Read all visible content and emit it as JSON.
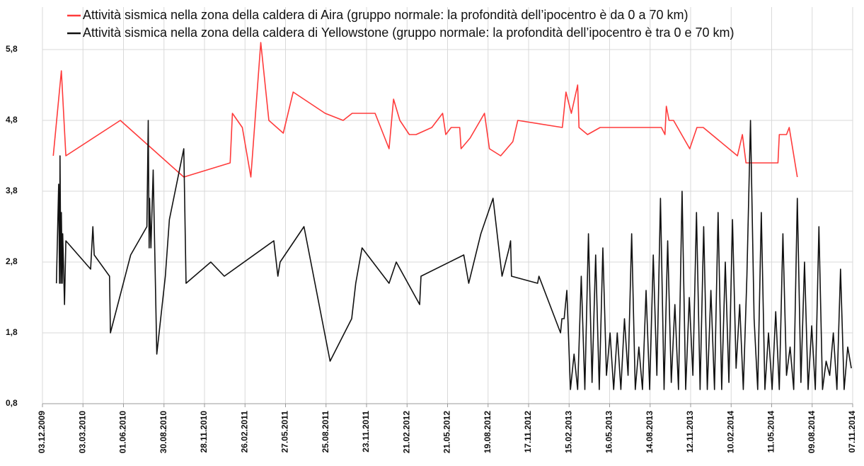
{
  "chart_data": {
    "type": "line",
    "legend": "top",
    "grid": true,
    "xlim": [
      "2009-12-03",
      "2014-11-07"
    ],
    "xticks": [
      {
        "value": "2009-12-03",
        "label": "03.12.2009"
      },
      {
        "value": "2010-03-03",
        "label": "03.03.2010"
      },
      {
        "value": "2010-06-01",
        "label": "01.06.2010"
      },
      {
        "value": "2010-08-30",
        "label": "30.08.2010"
      },
      {
        "value": "2010-11-28",
        "label": "28.11.2010"
      },
      {
        "value": "2011-02-26",
        "label": "26.02.2011"
      },
      {
        "value": "2011-05-27",
        "label": "27.05.2011"
      },
      {
        "value": "2011-08-25",
        "label": "25.08.2011"
      },
      {
        "value": "2011-11-23",
        "label": "23.11.2011"
      },
      {
        "value": "2012-02-21",
        "label": "21.02.2012"
      },
      {
        "value": "2012-05-21",
        "label": "21.05.2012"
      },
      {
        "value": "2012-08-19",
        "label": "19.08.2012"
      },
      {
        "value": "2012-11-17",
        "label": "17.11.2012"
      },
      {
        "value": "2013-02-15",
        "label": "15.02.2013"
      },
      {
        "value": "2013-05-16",
        "label": "16.05.2013"
      },
      {
        "value": "2013-08-14",
        "label": "14.08.2013"
      },
      {
        "value": "2013-11-12",
        "label": "12.11.2013"
      },
      {
        "value": "2014-02-10",
        "label": "10.02.2014"
      },
      {
        "value": "2014-05-11",
        "label": "11.05.2014"
      },
      {
        "value": "2014-08-09",
        "label": "09.08.2014"
      },
      {
        "value": "2014-11-07",
        "label": "07.11.2014"
      }
    ],
    "ylim": [
      0.8,
      6.4
    ],
    "yticks": [
      {
        "value": 0.8,
        "label": "0,8"
      },
      {
        "value": 1.8,
        "label": "1,8"
      },
      {
        "value": 2.8,
        "label": "2,8"
      },
      {
        "value": 3.8,
        "label": "3,8"
      },
      {
        "value": 4.8,
        "label": "4,8"
      },
      {
        "value": 5.8,
        "label": "5,8"
      }
    ],
    "series": [
      {
        "name": "Attività sismica nella zona della caldera di Aira (gruppo normale: la profondità dell’ipocentro è da 0 a 70 km)",
        "color": "#ff3b3b",
        "x": [
          "2009-12-27",
          "2010-01-14",
          "2010-01-24",
          "2010-05-25",
          "2010-10-13",
          "2011-01-24",
          "2011-01-29",
          "2011-02-20",
          "2011-03-11",
          "2011-04-02",
          "2011-04-20",
          "2011-05-22",
          "2011-06-13",
          "2011-08-23",
          "2011-10-02",
          "2011-10-22",
          "2011-12-12",
          "2012-01-12",
          "2012-01-22",
          "2012-02-05",
          "2012-02-26",
          "2012-03-12",
          "2012-04-16",
          "2012-05-10",
          "2012-05-17",
          "2012-05-29",
          "2012-06-17",
          "2012-06-20",
          "2012-07-10",
          "2012-08-11",
          "2012-08-22",
          "2012-09-16",
          "2012-10-13",
          "2012-10-24",
          "2013-01-31",
          "2013-02-08",
          "2013-02-20",
          "2013-03-06",
          "2013-03-09",
          "2013-03-28",
          "2013-04-25",
          "2013-09-08",
          "2013-09-16",
          "2013-09-19",
          "2013-09-25",
          "2013-10-05",
          "2013-11-10",
          "2013-11-26",
          "2013-12-10",
          "2014-02-24",
          "2014-03-07",
          "2014-03-15",
          "2014-05-25",
          "2014-05-28",
          "2014-06-13",
          "2014-06-19",
          "2014-07-07"
        ],
        "values": [
          4.3,
          5.5,
          4.3,
          4.8,
          4.0,
          4.2,
          4.9,
          4.7,
          4.0,
          5.9,
          4.8,
          4.62,
          5.2,
          4.9,
          4.8,
          4.9,
          4.9,
          4.4,
          5.1,
          4.8,
          4.6,
          4.6,
          4.7,
          4.9,
          4.6,
          4.7,
          4.7,
          4.4,
          4.55,
          4.9,
          4.4,
          4.3,
          4.5,
          4.8,
          4.7,
          5.2,
          4.9,
          5.3,
          4.7,
          4.6,
          4.7,
          4.7,
          4.6,
          5.0,
          4.8,
          4.8,
          4.4,
          4.7,
          4.7,
          4.3,
          4.6,
          4.2,
          4.2,
          4.6,
          4.6,
          4.7,
          4.0
        ]
      },
      {
        "name": "Attività sismica nella zona della caldera di Yellowstone (gruppo normale: la profondità dell’ipocentro è tra 0 e 70 km)",
        "color": "#111111",
        "x": [
          "2010-01-03",
          "2010-01-08",
          "2010-01-10",
          "2010-01-11",
          "2010-01-13",
          "2010-01-14",
          "2010-01-16",
          "2010-01-17",
          "2010-01-21",
          "2010-01-24",
          "2010-03-20",
          "2010-03-25",
          "2010-03-28",
          "2010-05-01",
          "2010-05-03",
          "2010-06-17",
          "2010-07-23",
          "2010-07-26",
          "2010-07-28",
          "2010-07-29",
          "2010-08-01",
          "2010-08-06",
          "2010-08-14",
          "2010-09-02",
          "2010-09-11",
          "2010-10-13",
          "2010-10-18",
          "2010-12-12",
          "2011-01-11",
          "2011-05-01",
          "2011-05-10",
          "2011-05-15",
          "2011-07-07",
          "2011-09-03",
          "2011-10-21",
          "2011-10-30",
          "2011-11-13",
          "2012-01-12",
          "2012-01-28",
          "2012-03-20",
          "2012-03-23",
          "2012-06-26",
          "2012-07-07",
          "2012-08-03",
          "2012-08-30",
          "2012-09-19",
          "2012-10-05",
          "2012-10-08",
          "2012-10-10",
          "2012-12-07",
          "2012-12-10",
          "2013-01-27",
          "2013-01-30",
          "2013-02-04",
          "2013-02-10",
          "2013-02-18",
          "2013-02-26",
          "2013-03-06",
          "2013-03-14",
          "2013-03-22",
          "2013-03-30",
          "2013-04-07",
          "2013-04-15",
          "2013-04-23",
          "2013-05-01",
          "2013-05-09",
          "2013-05-17",
          "2013-05-25",
          "2013-06-02",
          "2013-06-10",
          "2013-06-18",
          "2013-06-26",
          "2013-07-04",
          "2013-07-12",
          "2013-07-20",
          "2013-07-28",
          "2013-08-05",
          "2013-08-13",
          "2013-08-21",
          "2013-08-29",
          "2013-09-06",
          "2013-09-14",
          "2013-09-22",
          "2013-09-30",
          "2013-10-08",
          "2013-10-16",
          "2013-10-24",
          "2013-11-01",
          "2013-11-09",
          "2013-11-17",
          "2013-11-25",
          "2013-12-03",
          "2013-12-11",
          "2013-12-19",
          "2013-12-27",
          "2014-01-04",
          "2014-01-12",
          "2014-01-20",
          "2014-01-28",
          "2014-02-05",
          "2014-02-13",
          "2014-02-21",
          "2014-03-01",
          "2014-03-09",
          "2014-03-17",
          "2014-03-25",
          "2014-04-02",
          "2014-04-10",
          "2014-04-18",
          "2014-04-26",
          "2014-05-04",
          "2014-05-12",
          "2014-05-20",
          "2014-05-28",
          "2014-06-05",
          "2014-06-13",
          "2014-06-21",
          "2014-06-29",
          "2014-07-07",
          "2014-07-15",
          "2014-07-23",
          "2014-07-31",
          "2014-08-08",
          "2014-08-16",
          "2014-08-24",
          "2014-09-01",
          "2014-09-09",
          "2014-09-17",
          "2014-09-25",
          "2014-10-03",
          "2014-10-11",
          "2014-10-19",
          "2014-10-27",
          "2014-11-04"
        ],
        "values": [
          2.5,
          3.9,
          2.5,
          4.3,
          2.5,
          3.5,
          2.5,
          3.2,
          2.2,
          3.1,
          2.7,
          3.3,
          2.9,
          2.6,
          1.8,
          2.9,
          3.3,
          4.8,
          3.0,
          3.7,
          3.0,
          4.1,
          1.5,
          2.6,
          3.4,
          4.4,
          2.5,
          2.8,
          2.6,
          3.1,
          2.6,
          2.8,
          3.3,
          1.4,
          2.0,
          2.5,
          3.0,
          2.5,
          2.8,
          2.2,
          2.6,
          2.9,
          2.5,
          3.2,
          3.7,
          2.6,
          3.0,
          3.1,
          2.6,
          2.5,
          2.6,
          1.8,
          2.0,
          2.0,
          2.4,
          1.0,
          1.5,
          1.0,
          2.6,
          1.0,
          3.2,
          1.1,
          2.9,
          1.0,
          3.0,
          1.2,
          1.8,
          1.0,
          1.8,
          1.0,
          2.0,
          1.2,
          3.2,
          1.0,
          1.6,
          1.0,
          2.4,
          1.0,
          2.9,
          1.2,
          3.7,
          1.0,
          3.1,
          1.1,
          2.2,
          1.0,
          3.8,
          1.0,
          2.3,
          1.2,
          3.5,
          1.0,
          3.3,
          1.0,
          2.4,
          1.0,
          3.5,
          1.0,
          2.8,
          1.1,
          3.4,
          1.3,
          2.2,
          1.0,
          2.6,
          4.8,
          2.0,
          1.0,
          3.5,
          1.0,
          1.8,
          1.0,
          2.1,
          1.0,
          3.2,
          1.2,
          1.6,
          1.0,
          3.7,
          1.1,
          2.8,
          1.0,
          1.9,
          1.0,
          3.3,
          1.0,
          1.4,
          1.2,
          1.8,
          1.0,
          2.7,
          1.0,
          1.6,
          1.3
        ]
      }
    ]
  }
}
